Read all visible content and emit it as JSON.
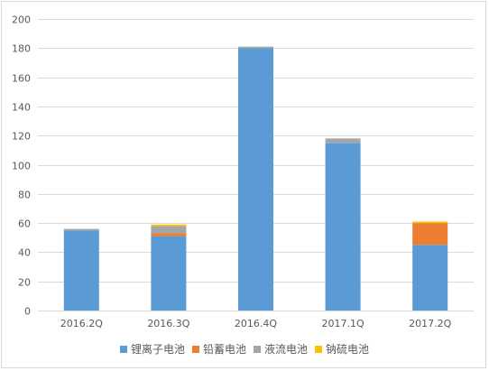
{
  "chart_data": {
    "type": "bar",
    "stacked": true,
    "title": "",
    "xlabel": "",
    "ylabel": "",
    "categories": [
      "2016.2Q",
      "2016.3Q",
      "2016.4Q",
      "2017.1Q",
      "2017.2Q"
    ],
    "series": [
      {
        "name": "锂离子电池",
        "color": "#5b9bd5",
        "values": [
          55,
          51,
          180,
          115,
          45
        ]
      },
      {
        "name": "铅蓄电池",
        "color": "#ed7d31",
        "values": [
          0,
          2,
          0,
          0,
          15
        ]
      },
      {
        "name": "液流电池",
        "color": "#a5a5a5",
        "values": [
          1,
          5,
          1,
          3,
          0
        ]
      },
      {
        "name": "钠硫电池",
        "color": "#ffc000",
        "values": [
          0,
          1,
          0,
          0,
          1
        ]
      }
    ],
    "ylim": [
      0,
      200
    ],
    "yticks": [
      0,
      20,
      40,
      60,
      80,
      100,
      120,
      140,
      160,
      180,
      200
    ],
    "grid": true,
    "legend_position": "bottom"
  }
}
